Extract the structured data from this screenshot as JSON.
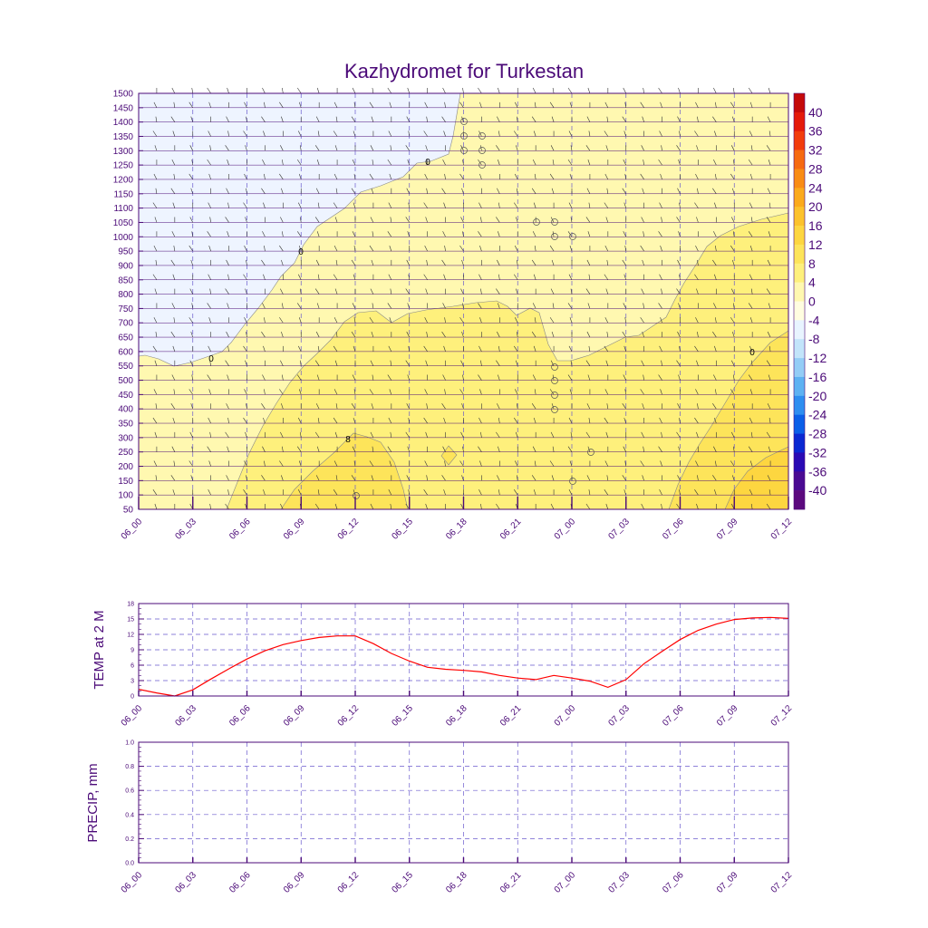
{
  "chart_data": [
    {
      "type": "heatmap",
      "title": "Kazhydromet for Turkestan",
      "x_tick_labels": [
        "06_00",
        "06_03",
        "06_06",
        "06_09",
        "06_12",
        "06_15",
        "06_18",
        "06_21",
        "07_00",
        "07_03",
        "07_06",
        "07_09",
        "07_12"
      ],
      "y_tick_labels": [
        "50",
        "100",
        "150",
        "200",
        "250",
        "300",
        "350",
        "400",
        "450",
        "500",
        "550",
        "600",
        "650",
        "700",
        "750",
        "800",
        "850",
        "900",
        "950",
        "1000",
        "1050",
        "1100",
        "1150",
        "1200",
        "1250",
        "1300",
        "1350",
        "1400",
        "1450",
        "1500"
      ],
      "ylim": [
        50,
        1500
      ],
      "colorbar": {
        "labels": [
          "40",
          "36",
          "32",
          "28",
          "24",
          "20",
          "16",
          "12",
          "8",
          "4",
          "0",
          "-4",
          "-8",
          "-12",
          "-16",
          "-20",
          "-24",
          "-28",
          "-32",
          "-36",
          "-40"
        ],
        "colors": [
          "#c40a0a",
          "#e41a0a",
          "#f23c0c",
          "#f66a10",
          "#f98c14",
          "#fbaa1c",
          "#fcc22c",
          "#fdd640",
          "#fde45a",
          "#fef07c",
          "#fff8b0",
          "#fffde0",
          "#e8f4ff",
          "#c2e4fa",
          "#94cdf6",
          "#5eb2f2",
          "#2e8ef0",
          "#0a5fe8",
          "#0a28d2",
          "#2a0ab4",
          "#4a0a92",
          "#5c0a7e"
        ]
      },
      "contour_labels": [
        "0",
        "0",
        "0",
        "0",
        "8",
        "8"
      ]
    },
    {
      "type": "line",
      "ylabel": "TEMP at 2 M",
      "ylim": [
        0,
        18
      ],
      "y_tick_labels": [
        "0",
        "3",
        "6",
        "9",
        "12",
        "15",
        "18"
      ],
      "x_tick_labels": [
        "06_00",
        "06_03",
        "06_06",
        "06_09",
        "06_12",
        "06_15",
        "06_18",
        "06_21",
        "07_00",
        "07_03",
        "07_06",
        "07_09",
        "07_12"
      ],
      "x": [
        0,
        1,
        2,
        3,
        4,
        5,
        6,
        7,
        8,
        9,
        10,
        11,
        12,
        13,
        14,
        15,
        16,
        17,
        18,
        19,
        20,
        21,
        22,
        23,
        24,
        25,
        26,
        27,
        28,
        29,
        30,
        31,
        32,
        33,
        34,
        35,
        36
      ],
      "series": [
        {
          "color": "#ff0000",
          "values": [
            1.3,
            0.6,
            0,
            1.2,
            3.3,
            5.3,
            7.2,
            8.8,
            10,
            10.8,
            11.4,
            11.7,
            11.7,
            10.2,
            8.3,
            6.8,
            5.6,
            5.2,
            5,
            4.7,
            4,
            3.5,
            3.2,
            4,
            3.5,
            2.9,
            1.7,
            3.2,
            6.3,
            8.7,
            11,
            12.8,
            14,
            14.9,
            15.2,
            15.3,
            15.1
          ]
        }
      ]
    },
    {
      "type": "line",
      "ylabel": "PRECIP, mm",
      "ylim": [
        0,
        1
      ],
      "y_tick_labels": [
        "0.0",
        "0.2",
        "0.4",
        "0.6",
        "0.8",
        "1.0"
      ],
      "x_tick_labels": [
        "06_00",
        "06_03",
        "06_06",
        "06_09",
        "06_12",
        "06_15",
        "06_18",
        "06_21",
        "07_00",
        "07_03",
        "07_06",
        "07_09",
        "07_12"
      ],
      "series": []
    }
  ]
}
